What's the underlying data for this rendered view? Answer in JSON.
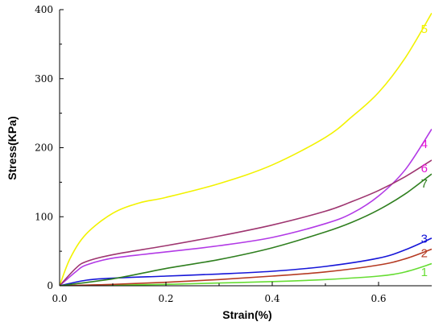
{
  "chart_data": {
    "type": "line",
    "title": "",
    "xlabel": "Strain(%)",
    "ylabel": "Stress(KPa)",
    "xlim": [
      0.0,
      0.7
    ],
    "ylim": [
      0,
      400
    ],
    "x_ticks": [
      0.0,
      0.2,
      0.4,
      0.6
    ],
    "x_tick_labels": [
      "0.0",
      "0.2",
      "0.4",
      "0.6"
    ],
    "y_ticks": [
      0,
      100,
      200,
      300,
      400
    ],
    "y_tick_labels": [
      "0",
      "100",
      "200",
      "300",
      "400"
    ],
    "grid": false,
    "series": [
      {
        "name": "1",
        "color": "#66dd33",
        "x": [
          0.0,
          0.1,
          0.2,
          0.3,
          0.4,
          0.5,
          0.6,
          0.65,
          0.7
        ],
        "y": [
          0,
          1,
          2,
          4,
          6,
          9,
          14,
          20,
          32
        ]
      },
      {
        "name": "2",
        "color": "#b53a22",
        "x": [
          0.0,
          0.1,
          0.2,
          0.3,
          0.4,
          0.5,
          0.6,
          0.65,
          0.7
        ],
        "y": [
          0,
          2,
          5,
          9,
          14,
          20,
          30,
          39,
          53
        ]
      },
      {
        "name": "3",
        "color": "#1616d8",
        "x": [
          0.0,
          0.05,
          0.1,
          0.2,
          0.3,
          0.4,
          0.5,
          0.6,
          0.65,
          0.7
        ],
        "y": [
          0,
          8,
          11,
          14,
          17,
          21,
          28,
          40,
          52,
          69
        ]
      },
      {
        "name": "4",
        "color": "#b23ae6",
        "x": [
          0.0,
          0.03,
          0.05,
          0.1,
          0.2,
          0.3,
          0.4,
          0.5,
          0.55,
          0.6,
          0.65,
          0.7
        ],
        "y": [
          0,
          20,
          30,
          40,
          49,
          58,
          70,
          90,
          105,
          130,
          168,
          227
        ]
      },
      {
        "name": "5",
        "color": "#f2f200",
        "x": [
          0.0,
          0.02,
          0.05,
          0.1,
          0.15,
          0.2,
          0.3,
          0.4,
          0.5,
          0.55,
          0.6,
          0.65,
          0.7
        ],
        "y": [
          0,
          40,
          75,
          105,
          120,
          128,
          148,
          175,
          215,
          245,
          280,
          330,
          395
        ]
      },
      {
        "name": "6",
        "color": "#9e3570",
        "x": [
          0.0,
          0.03,
          0.05,
          0.1,
          0.2,
          0.3,
          0.4,
          0.5,
          0.55,
          0.6,
          0.65,
          0.7
        ],
        "y": [
          0,
          25,
          35,
          45,
          58,
          72,
          88,
          108,
          122,
          138,
          158,
          182
        ]
      },
      {
        "name": "7",
        "color": "#2f7f1f",
        "x": [
          0.0,
          0.1,
          0.2,
          0.3,
          0.4,
          0.5,
          0.55,
          0.6,
          0.65,
          0.7
        ],
        "y": [
          0,
          10,
          25,
          38,
          55,
          78,
          92,
          110,
          133,
          162
        ]
      }
    ],
    "series_labels": [
      {
        "text": "1",
        "color": "#66dd33",
        "x": 0.686,
        "y": 20
      },
      {
        "text": "2",
        "color": "#b53a22",
        "x": 0.686,
        "y": 47
      },
      {
        "text": "3",
        "color": "#1616d8",
        "x": 0.686,
        "y": 68
      },
      {
        "text": "4",
        "color": "#e312d4",
        "x": 0.686,
        "y": 205
      },
      {
        "text": "5",
        "color": "#f2f200",
        "x": 0.686,
        "y": 372
      },
      {
        "text": "6",
        "color": "#e312d4",
        "x": 0.686,
        "y": 170
      },
      {
        "text": "7",
        "color": "#2f7f1f",
        "x": 0.686,
        "y": 148
      }
    ]
  }
}
